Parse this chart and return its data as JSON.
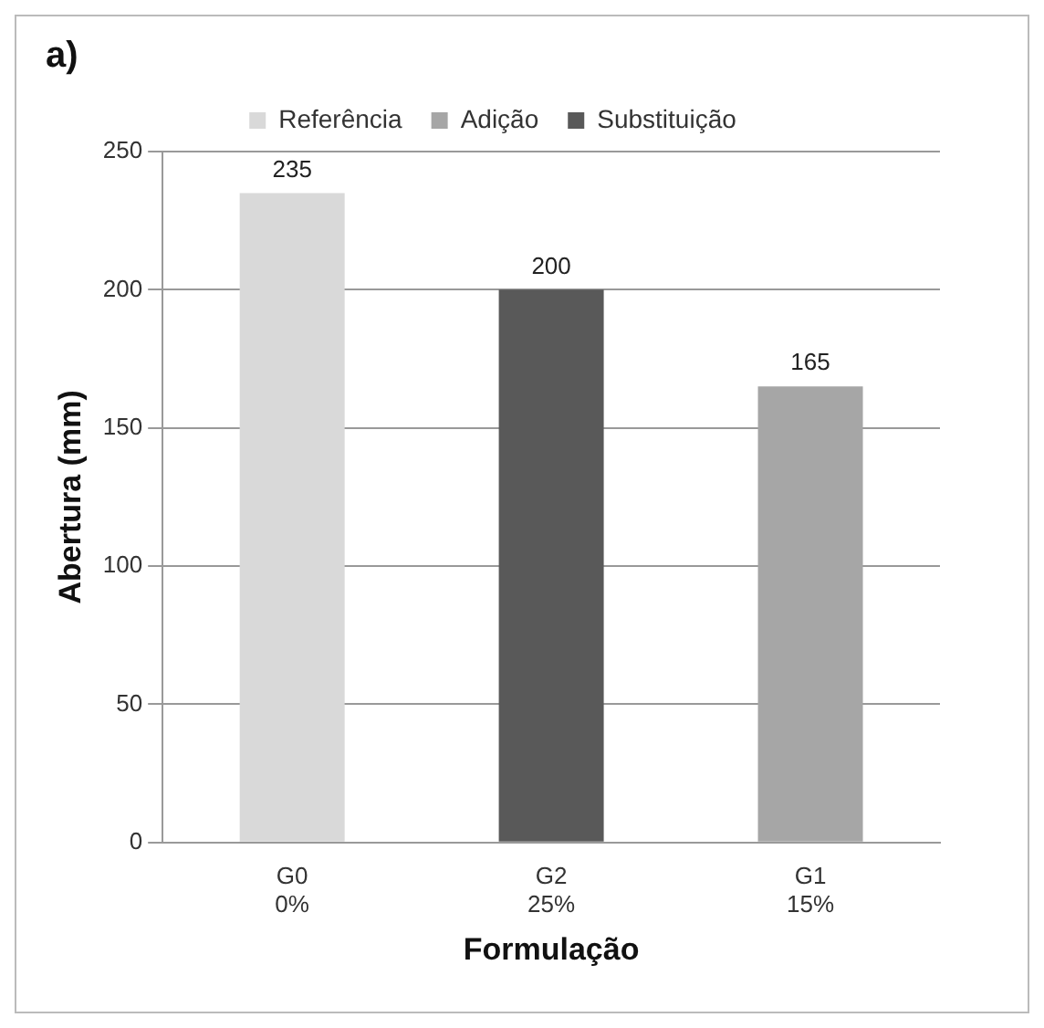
{
  "chart_data": {
    "type": "bar",
    "title": "a)",
    "xlabel": "Formulação",
    "ylabel": "Abertura (mm)",
    "categories": [
      "G0\n0%",
      "G2\n25%",
      "G1\n15%"
    ],
    "series": [
      {
        "name": "Referência",
        "color": "#d9d9d9",
        "values": [
          235,
          null,
          null
        ]
      },
      {
        "name": "Adição",
        "color": "#a6a6a6",
        "values": [
          null,
          null,
          165
        ]
      },
      {
        "name": "Substituição",
        "color": "#595959",
        "values": [
          null,
          200,
          null
        ]
      }
    ],
    "ylim": [
      0,
      250
    ],
    "yticks": [
      0,
      50,
      100,
      150,
      200,
      250
    ],
    "grid": "y",
    "legend": "top",
    "data_labels": true
  }
}
